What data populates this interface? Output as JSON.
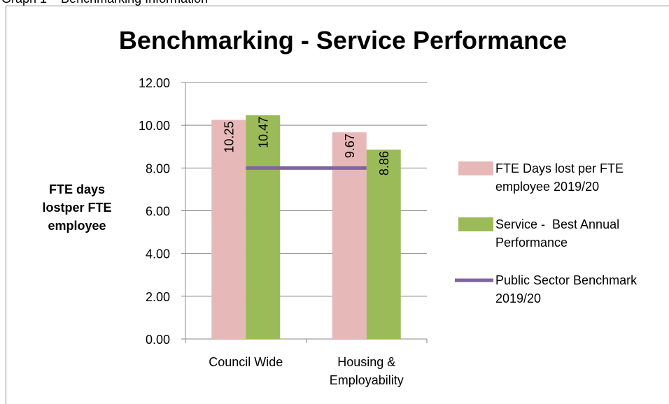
{
  "caption": "Graph 1 – Benchmarking Information",
  "chart_data": {
    "type": "bar",
    "title": "Benchmarking - Service Performance",
    "y_label": "FTE days lostper FTE employee",
    "categories": [
      "Council Wide",
      "Housing & Employability"
    ],
    "series": [
      {
        "name": "FTE Days lost per FTE employee 2019/20",
        "color": "#e6b9b8",
        "values": [
          10.25,
          9.67
        ]
      },
      {
        "name": "Service -  Best Annual Performance",
        "color": "#9bbb59",
        "values": [
          10.47,
          8.86
        ]
      },
      {
        "name": "Public Sector Benchmark 2019/20",
        "color": "#8064a2",
        "type": "line",
        "values": [
          8,
          8
        ]
      }
    ],
    "ylim": [
      0,
      12
    ],
    "yticks": [
      {
        "value": 0,
        "label": "0.00"
      },
      {
        "value": 2,
        "label": "2.00"
      },
      {
        "value": 4,
        "label": "4.00"
      },
      {
        "value": 6,
        "label": "6.00"
      },
      {
        "value": 8,
        "label": "8.00"
      },
      {
        "value": 10,
        "label": "10.00"
      },
      {
        "value": 12,
        "label": "12.00"
      }
    ],
    "grid": true,
    "legend": "right"
  }
}
